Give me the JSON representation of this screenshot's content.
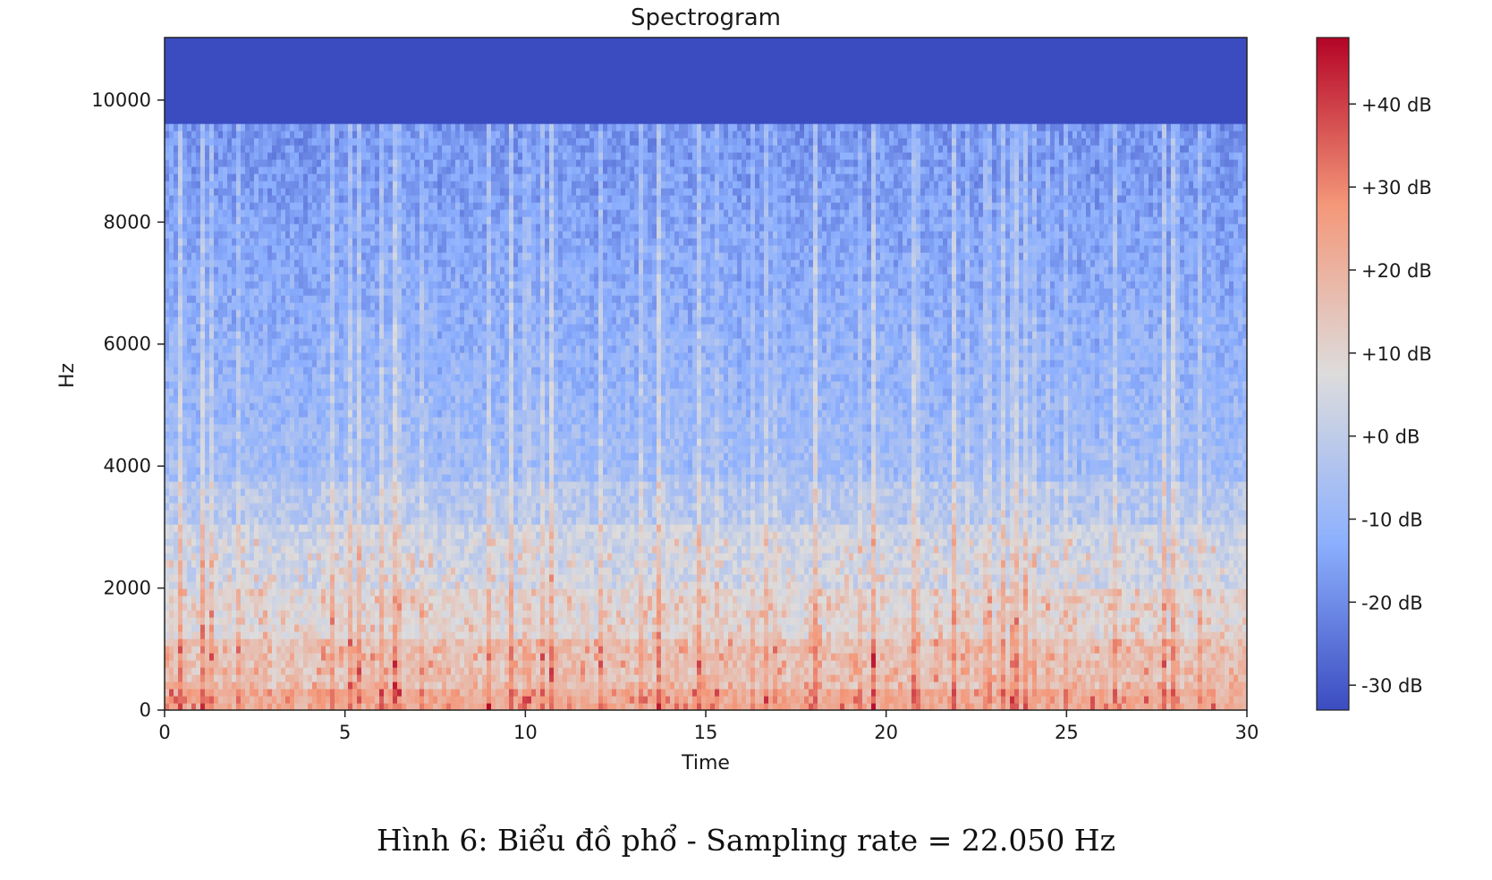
{
  "chart_data": {
    "type": "heatmap",
    "title": "Spectrogram",
    "xlabel": "Time",
    "ylabel": "Hz",
    "xlim": [
      0,
      30
    ],
    "ylim": [
      0,
      11025
    ],
    "x_ticks": [
      0,
      5,
      10,
      15,
      20,
      25,
      30
    ],
    "y_ticks": [
      0,
      2000,
      4000,
      6000,
      8000,
      10000
    ],
    "colormap": "coolwarm",
    "colorbar": {
      "range_db": [
        -33,
        48
      ],
      "ticks": [
        {
          "value": 40,
          "label": "+40 dB"
        },
        {
          "value": 30,
          "label": "+30 dB"
        },
        {
          "value": 20,
          "label": "+20 dB"
        },
        {
          "value": 10,
          "label": "+10 dB"
        },
        {
          "value": 0,
          "label": "+0 dB"
        },
        {
          "value": -10,
          "label": "-10 dB"
        },
        {
          "value": -20,
          "label": "-20 dB"
        },
        {
          "value": -30,
          "label": "-30 dB"
        }
      ]
    },
    "colors": {
      "low": "#3b4cc0",
      "mid": "#dddddd",
      "high": "#b40426"
    }
  },
  "caption": "Hình 6: Biểu đồ phổ - Sampling rate = 22.050 Hz"
}
